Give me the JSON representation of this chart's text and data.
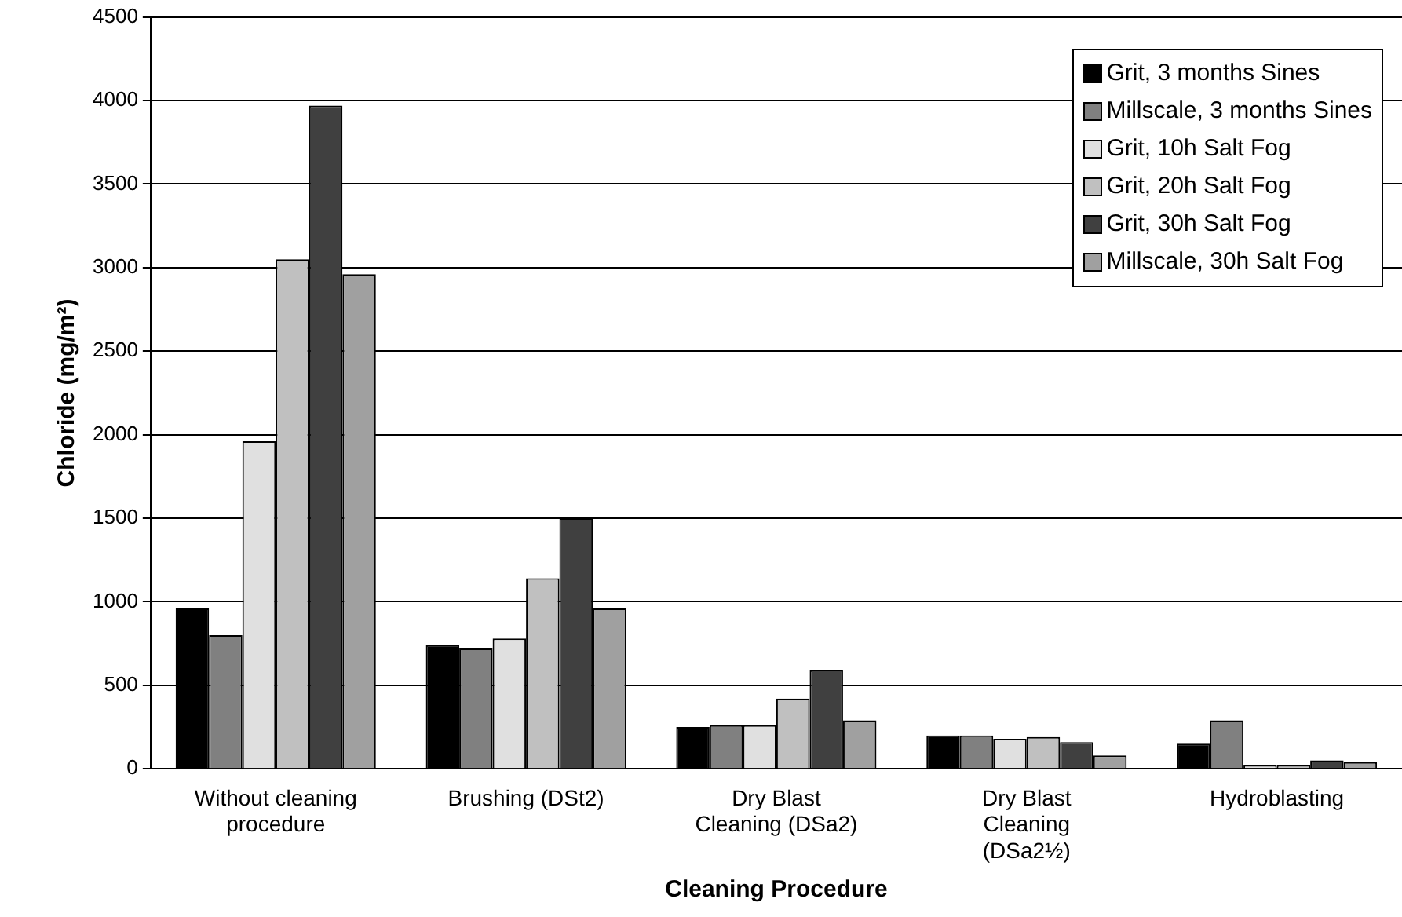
{
  "chart_data": {
    "type": "bar",
    "xlabel": "Cleaning Procedure",
    "ylabel": "Chloride (mg/m²)",
    "categories": [
      "Without cleaning\nprocedure",
      "Brushing (DSt2)",
      "Dry Blast\nCleaning (DSa2)",
      "Dry Blast\nCleaning\n(DSa2½)",
      "Hydroblasting"
    ],
    "series": [
      {
        "name": "Grit, 3 months Sines",
        "color": "#000000",
        "values": [
          960,
          740,
          250,
          200,
          150
        ]
      },
      {
        "name": "Millscale, 3 months Sines",
        "color": "#808080",
        "values": [
          800,
          720,
          260,
          200,
          290
        ]
      },
      {
        "name": "Grit, 10h Salt Fog",
        "color": "#e0e0e0",
        "values": [
          1960,
          780,
          260,
          180,
          20
        ]
      },
      {
        "name": "Grit, 20h Salt Fog",
        "color": "#c0c0c0",
        "values": [
          3050,
          1140,
          420,
          190,
          20
        ]
      },
      {
        "name": "Grit, 30h Salt Fog",
        "color": "#404040",
        "values": [
          3970,
          1500,
          590,
          160,
          50
        ]
      },
      {
        "name": "Millscale, 30h Salt Fog",
        "color": "#a0a0a0",
        "values": [
          2960,
          960,
          290,
          80,
          40
        ]
      }
    ],
    "ylim": [
      0,
      4500
    ],
    "yticks": [
      0,
      500,
      1000,
      1500,
      2000,
      2500,
      3000,
      3500,
      4000,
      4500
    ],
    "grid": "y",
    "legend": "top right"
  }
}
